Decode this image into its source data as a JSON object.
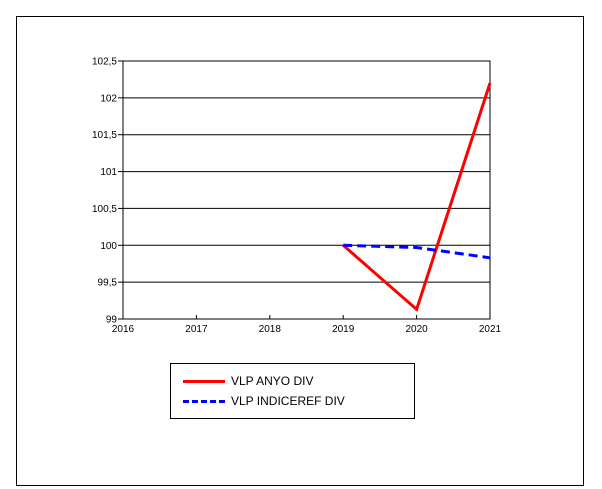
{
  "chart_data": {
    "type": "line",
    "title": "",
    "xlabel": "",
    "ylabel": "",
    "x": [
      2016,
      2017,
      2018,
      2019,
      2020,
      2021
    ],
    "x_tick_labels": [
      "2016",
      "2017",
      "2018",
      "2019",
      "2020",
      "2021"
    ],
    "y_tick_labels": [
      "99",
      "99,5",
      "100",
      "100,5",
      "101",
      "101,5",
      "102",
      "102,5"
    ],
    "y_ticks": [
      99,
      99.5,
      100,
      100.5,
      101,
      101.5,
      102,
      102.5
    ],
    "ylim": [
      99,
      102.5
    ],
    "xlim": [
      2016,
      2021
    ],
    "grid": "horizontal",
    "legend_placement": "bottom-left",
    "series": [
      {
        "name": "VLP ANYO DIV",
        "color": "#ff0000",
        "style": "solid",
        "points": [
          [
            2019,
            100.0
          ],
          [
            2020,
            99.13
          ],
          [
            2021,
            102.2
          ]
        ]
      },
      {
        "name": "VLP INDICEREF DIV",
        "color": "#0000ff",
        "style": "dashed",
        "points": [
          [
            2019,
            100.0
          ],
          [
            2020,
            99.97
          ],
          [
            2021,
            99.83
          ]
        ]
      }
    ]
  }
}
